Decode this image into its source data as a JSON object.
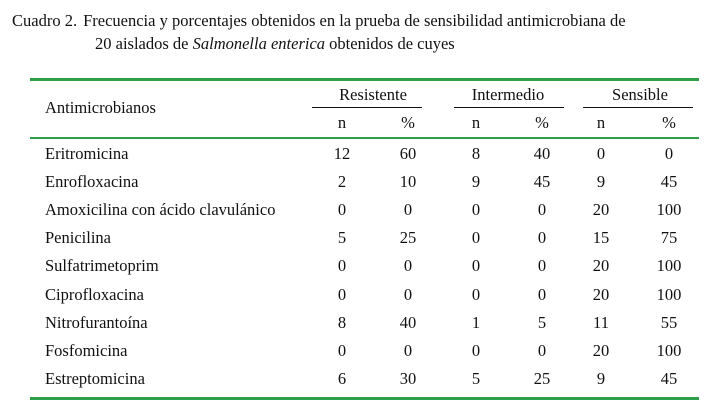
{
  "caption": {
    "label": "Cuadro 2.",
    "line1": "Frecuencia y porcentajes obtenidos en la prueba de sensibilidad antimicrobiana de",
    "line2_pre": "20 aislados de ",
    "line2_italic": "Salmonella enterica",
    "line2_post": " obtenidos de cuyes"
  },
  "table": {
    "first_header": "Antimicrobianos",
    "groups": [
      "Resistente",
      "Intermedio",
      "Sensible"
    ],
    "subheaders": [
      "n",
      "%",
      "n",
      "%",
      "n",
      "%"
    ],
    "rows": [
      {
        "name": "Eritromicina",
        "values": [
          "12",
          "60",
          "8",
          "40",
          "0",
          "0"
        ]
      },
      {
        "name": "Enrofloxacina",
        "values": [
          "2",
          "10",
          "9",
          "45",
          "9",
          "45"
        ]
      },
      {
        "name": "Amoxicilina con ácido clavulánico",
        "values": [
          "0",
          "0",
          "0",
          "0",
          "20",
          "100"
        ]
      },
      {
        "name": "Penicilina",
        "values": [
          "5",
          "25",
          "0",
          "0",
          "15",
          "75"
        ]
      },
      {
        "name": "Sulfatrimetoprim",
        "values": [
          "0",
          "0",
          "0",
          "0",
          "20",
          "100"
        ]
      },
      {
        "name": "Ciprofloxacina",
        "values": [
          "0",
          "0",
          "0",
          "0",
          "20",
          "100"
        ]
      },
      {
        "name": "Nitrofurantoína",
        "values": [
          "8",
          "40",
          "1",
          "5",
          "11",
          "55"
        ]
      },
      {
        "name": "Fosfomicina",
        "values": [
          "0",
          "0",
          "0",
          "0",
          "20",
          "100"
        ]
      },
      {
        "name": "Estreptomicina",
        "values": [
          "6",
          "30",
          "5",
          "25",
          "9",
          "45"
        ]
      }
    ]
  },
  "colors": {
    "rule": "#2e9e49",
    "text": "#111111"
  }
}
